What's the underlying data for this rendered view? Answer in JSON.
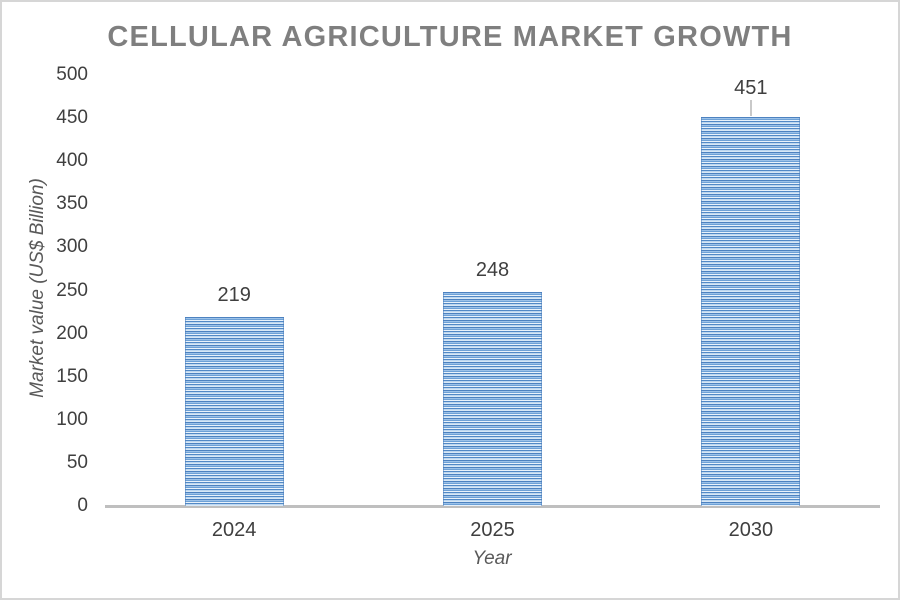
{
  "frame": {
    "background": "#ffffff",
    "border_color": "#d6d6d6"
  },
  "chart_data": {
    "type": "bar",
    "title": "CELLULAR AGRICULTURE MARKET GROWTH",
    "xlabel": "Year",
    "ylabel": "Market value (US$ Billion)",
    "categories": [
      "2024",
      "2025",
      "2030"
    ],
    "values": [
      219,
      248,
      451
    ],
    "data_labels": [
      "219",
      "248",
      "451"
    ],
    "label_leader_lines": [
      false,
      false,
      true
    ],
    "yticks": [
      0,
      50,
      100,
      150,
      200,
      250,
      300,
      350,
      400,
      450,
      500
    ],
    "ylim": [
      0,
      500
    ],
    "grid": false,
    "legend": "none",
    "colors": {
      "title": "#7f7f7f",
      "tick_label": "#3f3f3f",
      "data_label": "#3f3f3f",
      "axis_title": "#595959",
      "axis_line": "#bfbfbf",
      "leader_line": "#c9c9c9",
      "bar_stripes": [
        "#4d82c0",
        "#9cc2e9",
        "#6ea1d6",
        "#e9f2fb",
        "#5289c6",
        "#bdd7f0",
        "#d8e8f6"
      ]
    }
  }
}
